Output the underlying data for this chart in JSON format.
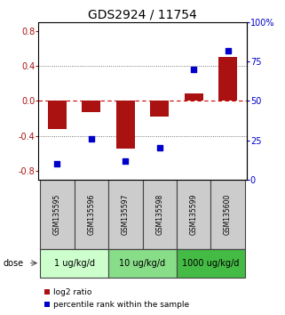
{
  "title": "GDS2924 / 11754",
  "samples": [
    "GSM135595",
    "GSM135596",
    "GSM135597",
    "GSM135598",
    "GSM135599",
    "GSM135600"
  ],
  "log2_ratio": [
    -0.32,
    -0.13,
    -0.55,
    -0.18,
    0.08,
    0.5
  ],
  "percentile_rank": [
    10,
    26,
    12,
    20,
    70,
    82
  ],
  "dose_groups": [
    {
      "label": "1 ug/kg/d",
      "start": 0,
      "end": 1,
      "color": "#ccffcc"
    },
    {
      "label": "10 ug/kg/d",
      "start": 2,
      "end": 3,
      "color": "#88dd88"
    },
    {
      "label": "1000 ug/kg/d",
      "start": 4,
      "end": 5,
      "color": "#44bb44"
    }
  ],
  "bar_color": "#aa1111",
  "dot_color": "#0000cc",
  "ylim_left": [
    -0.9,
    0.9
  ],
  "ylim_right": [
    0,
    100
  ],
  "yticks_left": [
    -0.8,
    -0.4,
    0.0,
    0.4,
    0.8
  ],
  "yticks_right": [
    0,
    25,
    50,
    75,
    100
  ],
  "hlines_dotted": [
    -0.4,
    0.4
  ],
  "hline_zero_color": "#cc0000",
  "hline_dotted_color": "#555555",
  "dose_label": "dose",
  "legend_red": "log2 ratio",
  "legend_blue": "percentile rank within the sample",
  "bar_width": 0.55,
  "sample_box_color": "#cccccc",
  "title_fontsize": 10,
  "tick_fontsize": 7,
  "sample_fontsize": 5.5,
  "dose_fontsize": 7,
  "legend_fontsize": 6.5
}
